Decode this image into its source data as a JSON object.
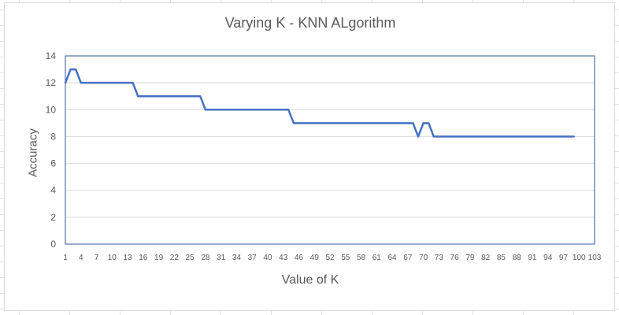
{
  "chart_data": {
    "type": "line",
    "title": "Varying K - KNN ALgorithm",
    "xlabel": "Value of K",
    "ylabel": "Accuracy",
    "ylim": [
      0,
      14
    ],
    "y_ticks": [
      0,
      2,
      4,
      6,
      8,
      10,
      12,
      14
    ],
    "x_ticks": [
      1,
      4,
      7,
      10,
      13,
      16,
      19,
      22,
      25,
      28,
      31,
      34,
      37,
      40,
      43,
      46,
      49,
      52,
      55,
      58,
      61,
      64,
      67,
      70,
      73,
      76,
      79,
      82,
      85,
      88,
      91,
      94,
      97,
      100,
      103
    ],
    "x_range": [
      1,
      103
    ],
    "grid": true,
    "series": [
      {
        "color": "#4472c4",
        "x": [
          1,
          2,
          3,
          4,
          5,
          6,
          7,
          8,
          9,
          10,
          11,
          12,
          13,
          14,
          15,
          16,
          17,
          18,
          19,
          20,
          21,
          22,
          23,
          24,
          25,
          26,
          27,
          28,
          29,
          30,
          31,
          32,
          33,
          34,
          35,
          36,
          37,
          38,
          39,
          40,
          41,
          42,
          43,
          44,
          45,
          46,
          47,
          48,
          49,
          50,
          51,
          52,
          53,
          54,
          55,
          56,
          57,
          58,
          59,
          60,
          61,
          62,
          63,
          64,
          65,
          66,
          67,
          68,
          69,
          70,
          71,
          72,
          73,
          74,
          75,
          76,
          77,
          78,
          79,
          80,
          81,
          82,
          83,
          84,
          85,
          86,
          87,
          88,
          89,
          90,
          91,
          92,
          93,
          94,
          95,
          96,
          97,
          98,
          99
        ],
        "values": [
          12,
          13,
          13,
          12,
          12,
          12,
          12,
          12,
          12,
          12,
          12,
          12,
          12,
          12,
          11,
          11,
          11,
          11,
          11,
          11,
          11,
          11,
          11,
          11,
          11,
          11,
          11,
          10,
          10,
          10,
          10,
          10,
          10,
          10,
          10,
          10,
          10,
          10,
          10,
          10,
          10,
          10,
          10,
          10,
          9,
          9,
          9,
          9,
          9,
          9,
          9,
          9,
          9,
          9,
          9,
          9,
          9,
          9,
          9,
          9,
          9,
          9,
          9,
          9,
          9,
          9,
          9,
          9,
          8,
          9,
          9,
          8,
          8,
          8,
          8,
          8,
          8,
          8,
          8,
          8,
          8,
          8,
          8,
          8,
          8,
          8,
          8,
          8,
          8,
          8,
          8,
          8,
          8,
          8,
          8,
          8,
          8,
          8,
          8
        ]
      }
    ]
  }
}
